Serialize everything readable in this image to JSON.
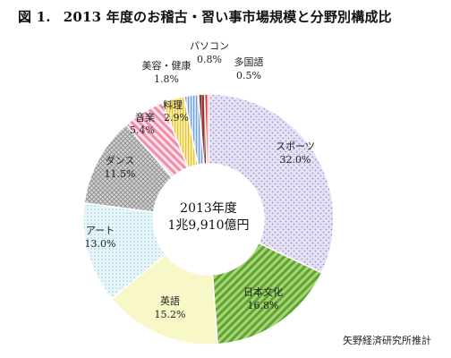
{
  "title": {
    "number": "図 1.",
    "text": "2013 年度のお稽古・習い事市場規模と分野別構成比"
  },
  "source": "矢野経済研究所推計",
  "chart_data": {
    "type": "pie",
    "variant": "donut",
    "center_label": [
      "2013年度",
      "1兆9,910億円"
    ],
    "start_angle_deg": 0,
    "direction": "clockwise",
    "slices": [
      {
        "label": "スポーツ",
        "value": 32.0,
        "value_label": "32.0%",
        "color": "#dcd6f0",
        "pattern": "diag-dots-purple"
      },
      {
        "label": "日本文化",
        "value": 16.8,
        "value_label": "16.8%",
        "color": "#6fb03a",
        "pattern": "diag-lines-green"
      },
      {
        "label": "英語",
        "value": 15.2,
        "value_label": "15.2%",
        "color": "#f6f6c4",
        "pattern": "solid-yellow"
      },
      {
        "label": "アート",
        "value": 13.0,
        "value_label": "13.0%",
        "color": "#d9f0f5",
        "pattern": "dots-cyan"
      },
      {
        "label": "ダンス",
        "value": 11.5,
        "value_label": "11.5%",
        "color": "#c8c8c8",
        "pattern": "cross-gray"
      },
      {
        "label": "音楽",
        "value": 5.4,
        "value_label": "5.4%",
        "color": "#f7b8cc",
        "pattern": "diag-lines-pink"
      },
      {
        "label": "料理",
        "value": 2.9,
        "value_label": "2.9%",
        "color": "#f3e07a",
        "pattern": "vlines-yellow"
      },
      {
        "label": "美容・健康",
        "value": 1.8,
        "value_label": "1.8%",
        "color": "#a9c9ee",
        "pattern": "vlines-blue"
      },
      {
        "label": "パソコン",
        "value": 0.8,
        "value_label": "0.8%",
        "color": "#7f3a3a",
        "pattern": "solid-maroon"
      },
      {
        "label": "多国語",
        "value": 0.5,
        "value_label": "0.5%",
        "color": "#e23232",
        "pattern": "solid-red"
      }
    ]
  }
}
